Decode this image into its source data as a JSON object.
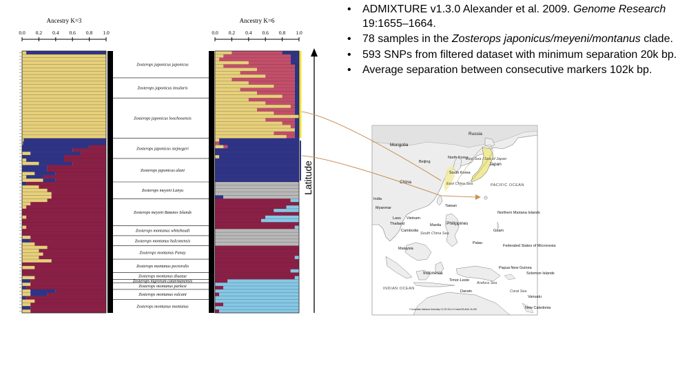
{
  "bullets": {
    "b1_pre": "ADMIXTURE v1.3.0 Alexander et al. 2009. ",
    "b1_journal": "Genome Research",
    "b1_post": " 19:1655–1664.",
    "b2_pre": "78 samples in the ",
    "b2_taxon": "Zosterops japonicus/meyeni/montanus",
    "b2_post": " clade.",
    "b3": "593 SNPs from filtered dataset with minimum separation 20k bp.",
    "b4": "Average separation between consecutive markers 102k bp."
  },
  "latitude_label": "Latitude",
  "colors": {
    "yellow": "#e7d07a",
    "navy": "#2e3388",
    "crimson": "#8c1e45",
    "rose": "#c44e6a",
    "grey": "#b8b8b8",
    "lightblue": "#86c8e6",
    "marker_yellow": "#f2e23a",
    "marker_navy": "#2a3a80",
    "arrow": "#c8925a"
  },
  "populations": [
    {
      "name": "Zosterops japonicus japonicus",
      "n": 8
    },
    {
      "name": "Zosterops japonicus insularis",
      "n": 6
    },
    {
      "name": "Zosterops japonicus loochooensis",
      "n": 12
    },
    {
      "name": "Zosterops japonicus stejnegeri",
      "n": 6
    },
    {
      "name": "Zosterops japonicus alani",
      "n": 7
    },
    {
      "name": "Zosterops meyeni Lanyu",
      "n": 5
    },
    {
      "name": "Zosterops meyeni Batanes Islands",
      "n": 8
    },
    {
      "name": "Zosterops montanus whiteheadi",
      "n": 3
    },
    {
      "name": "Zosterops montanus halconensis",
      "n": 3
    },
    {
      "name": "Zosterops montanus Panay",
      "n": 4
    },
    {
      "name": "Zosterops montanus pectoralis",
      "n": 4
    },
    {
      "name": "Zosterops montanus diuatae",
      "n": 2
    },
    {
      "name": "Zosterops nigrorum catarmanensis",
      "n": 1
    },
    {
      "name": "Zosterops montanus parkesi",
      "n": 2
    },
    {
      "name": "Zosterops montanus vulcani",
      "n": 3
    },
    {
      "name": "Zosterops montanus montanus",
      "n": 4
    }
  ],
  "chart_data": [
    {
      "type": "bar",
      "orientation": "horizontal-stacked",
      "title": "Ancestry K=3",
      "xlim": [
        0,
        1
      ],
      "xticks": [
        "0.0",
        "0.2",
        "0.4",
        "0.6",
        "0.8",
        "1.0"
      ],
      "series": [
        {
          "color": "#e7d07a",
          "values": [
            0.05,
            1,
            1,
            1,
            1,
            1,
            1,
            1,
            1,
            1,
            1,
            1,
            1,
            1,
            1,
            1,
            1,
            1,
            1,
            1,
            1,
            1,
            1,
            1,
            1,
            1,
            0.02,
            0.01,
            0,
            0,
            0.1,
            0,
            0.05,
            0.2,
            0,
            0,
            0.15,
            0.05,
            0.25,
            0,
            0.2,
            0.3,
            0.35,
            0.35,
            0.3,
            0.1,
            0.05,
            0,
            0,
            0.05,
            0,
            0,
            0.05,
            0,
            0,
            0.1,
            0,
            0.15,
            0.3,
            0.2,
            0.25,
            0.2,
            0.35,
            0,
            0.15,
            0,
            0,
            0.15,
            0,
            0.1,
            0,
            0.1,
            0.1,
            0,
            0.15,
            0.1,
            0,
            0.1
          ]
        },
        {
          "color": "#2e3388",
          "values": [
            0.95,
            0,
            0,
            0,
            0,
            0,
            0,
            0,
            0,
            0,
            0,
            0,
            0,
            0,
            0,
            0,
            0,
            0,
            0,
            0,
            0,
            0,
            0,
            0,
            0,
            0,
            0.98,
            0.99,
            0.8,
            0.6,
            0.6,
            0.5,
            0.45,
            0.4,
            0.3,
            0.3,
            0.25,
            0.2,
            0.15,
            0.05,
            0,
            0,
            0,
            0,
            0,
            0,
            0,
            0,
            0,
            0,
            0,
            0,
            0,
            0,
            0,
            0,
            0.1,
            0,
            0,
            0,
            0,
            0,
            0,
            0,
            0,
            0,
            0,
            0,
            0.1,
            0,
            0.05,
            0.3,
            0.2,
            0.05,
            0,
            0,
            0.1,
            0
          ]
        },
        {
          "color": "#8c1e45",
          "values": [
            0,
            0,
            0,
            0,
            0,
            0,
            0,
            0,
            0,
            0,
            0,
            0,
            0,
            0,
            0,
            0,
            0,
            0,
            0,
            0,
            0,
            0,
            0,
            0,
            0,
            0,
            0,
            0,
            0.2,
            0.4,
            0.3,
            0.5,
            0.5,
            0.4,
            0.7,
            0.7,
            0.6,
            0.75,
            0.6,
            0.95,
            0.8,
            0.7,
            0.65,
            0.65,
            0.7,
            0.9,
            0.95,
            1,
            1,
            0.95,
            1,
            1,
            0.95,
            1,
            1,
            0.9,
            0.9,
            0.85,
            0.7,
            0.8,
            0.75,
            0.8,
            0.65,
            1,
            0.85,
            1,
            1,
            0.85,
            0.9,
            0.9,
            0.95,
            0.6,
            0.7,
            0.95,
            0.85,
            0.9,
            0.9,
            0.9
          ]
        }
      ]
    },
    {
      "type": "bar",
      "orientation": "horizontal-stacked",
      "title": "Ancestry K=6",
      "xlim": [
        0,
        1
      ],
      "xticks": [
        "0.0",
        "0.2",
        "0.4",
        "0.6",
        "0.8",
        "1.0"
      ],
      "series": [
        {
          "color": "#e7d07a",
          "values": [
            0.2,
            0.1,
            0.05,
            0.4,
            0.1,
            0.5,
            0.3,
            0.6,
            0.2,
            0.4,
            0.7,
            0.3,
            0.5,
            0.8,
            0.4,
            0.6,
            0.9,
            0.5,
            0.7,
            1,
            0.6,
            0.8,
            0.9,
            0.95,
            0.7,
            0.85,
            0.05,
            0,
            0.1,
            0,
            0,
            0.05,
            0,
            0,
            0,
            0,
            0,
            0,
            0,
            0,
            0,
            0,
            0,
            0,
            0,
            0,
            0,
            0,
            0,
            0,
            0,
            0,
            0,
            0,
            0,
            0,
            0,
            0,
            0,
            0,
            0,
            0,
            0,
            0,
            0,
            0,
            0,
            0,
            0,
            0,
            0,
            0,
            0,
            0,
            0,
            0,
            0,
            0
          ]
        },
        {
          "color": "#c44e6a",
          "values": [
            0.6,
            0.8,
            0.85,
            0.5,
            0.85,
            0.45,
            0.65,
            0.35,
            0.75,
            0.55,
            0.25,
            0.65,
            0.45,
            0.15,
            0.55,
            0.35,
            0.05,
            0.45,
            0.25,
            0,
            0.35,
            0.15,
            0.05,
            0,
            0.25,
            0.1,
            0,
            0.05,
            0.05,
            0,
            0,
            0,
            0,
            0,
            0,
            0,
            0,
            0,
            0,
            0,
            0,
            0,
            0,
            0,
            0,
            0,
            0,
            0,
            0,
            0,
            0,
            0,
            0,
            0,
            0,
            0,
            0,
            0,
            0,
            0,
            0,
            0,
            0,
            0,
            0,
            0,
            0,
            0,
            0,
            0,
            0,
            0,
            0,
            0,
            0,
            0,
            0,
            0
          ]
        },
        {
          "color": "#2e3388",
          "values": [
            0.2,
            0.1,
            0.1,
            0.1,
            0.05,
            0.05,
            0.05,
            0.05,
            0.05,
            0.05,
            0.05,
            0.05,
            0.05,
            0.05,
            0.05,
            0.05,
            0.05,
            0.05,
            0.05,
            0,
            0.05,
            0.05,
            0.05,
            0.05,
            0.05,
            0.05,
            0.95,
            0.95,
            0.85,
            1,
            1,
            0.95,
            1,
            1,
            1,
            1,
            1,
            1,
            1,
            0,
            0,
            0,
            0,
            0.1,
            0,
            0,
            0,
            0,
            0,
            0,
            0,
            0,
            0,
            0,
            0,
            0,
            0,
            0,
            0,
            0,
            0,
            0,
            0,
            0,
            0,
            0,
            0,
            0,
            0,
            0,
            0,
            0,
            0,
            0,
            0,
            0,
            0,
            0
          ]
        },
        {
          "color": "#b8b8b8",
          "values": [
            0,
            0,
            0,
            0,
            0,
            0,
            0,
            0,
            0,
            0,
            0,
            0,
            0,
            0,
            0,
            0,
            0,
            0,
            0,
            0,
            0,
            0,
            0,
            0,
            0,
            0,
            0,
            0,
            0,
            0,
            0,
            0,
            0,
            0,
            0,
            0,
            0,
            0,
            0,
            1,
            1,
            1,
            1,
            0.9,
            0,
            0,
            0,
            0,
            0,
            0,
            0,
            0,
            0,
            1,
            1,
            1,
            1,
            1,
            0,
            0,
            0,
            0,
            0,
            0,
            0,
            0,
            0,
            0,
            0,
            0,
            0,
            0,
            0,
            0,
            0,
            0,
            0,
            0
          ]
        },
        {
          "color": "#8c1e45",
          "values": [
            0,
            0,
            0,
            0,
            0,
            0,
            0,
            0,
            0,
            0,
            0,
            0,
            0,
            0,
            0,
            0,
            0,
            0,
            0,
            0,
            0,
            0,
            0,
            0,
            0,
            0,
            0,
            0,
            0,
            0,
            0,
            0,
            0,
            0,
            0,
            0,
            0,
            0,
            0,
            0,
            0,
            0,
            0,
            0,
            0.9,
            1,
            0.85,
            0.7,
            1,
            0.6,
            0.55,
            1,
            0.95,
            0,
            0,
            0,
            0,
            0,
            1,
            1,
            1,
            0.95,
            1,
            1,
            1,
            0.9,
            1,
            0.95,
            0.15,
            0,
            0.1,
            0,
            0.05,
            0,
            0,
            0.1,
            0,
            0.05
          ]
        },
        {
          "color": "#86c8e6",
          "values": [
            0,
            0,
            0,
            0,
            0,
            0,
            0,
            0,
            0,
            0,
            0,
            0,
            0,
            0,
            0,
            0,
            0,
            0,
            0,
            0,
            0,
            0,
            0,
            0,
            0,
            0,
            0,
            0,
            0,
            0,
            0,
            0,
            0,
            0,
            0,
            0,
            0,
            0,
            0,
            0,
            0,
            0,
            0,
            0,
            0.1,
            0,
            0.15,
            0.3,
            0,
            0.4,
            0.45,
            0,
            0.05,
            0,
            0,
            0,
            0,
            0,
            0,
            0,
            0,
            0.05,
            0,
            0,
            0,
            0.1,
            0,
            0.05,
            0.85,
            1,
            0.9,
            1,
            0.95,
            1,
            1,
            0.9,
            1,
            0.95
          ]
        }
      ]
    }
  ],
  "map": {
    "labels": {
      "russia": "Russia",
      "mongolia": "Mongolia",
      "china": "China",
      "beijing": "Beijing",
      "north_korea": "North Korea",
      "south_korea": "South Korea",
      "japan": "Japan",
      "sea_of_japan": "East Sea / Sea of Japan",
      "east_china_sea": "East China Sea",
      "pacific_ocean": "PACIFIC OCEAN",
      "india": "India",
      "myanmar": "Myanmar",
      "laos": "Laos",
      "thailand": "Thailand",
      "vietnam": "Vietnam",
      "cambodia": "Cambodia",
      "taiwan": "Taiwan",
      "philippines": "Philippines",
      "south_china_sea": "South China Sea",
      "manila": "Manila",
      "northern_mariana": "Northern Mariana Islands",
      "guam": "Guam",
      "palau": "Palau",
      "micronesia": "Federated States of Micronesia",
      "malaysia": "Malaysia",
      "indonesia": "Indonesia",
      "timor_leste": "Timor-Leste",
      "darwin": "Darwin",
      "png": "Papua New Guinea",
      "solomon": "Solomon Islands",
      "vanuatu": "Vanuatu",
      "new_caledonia": "New Caledonia",
      "indian_ocean": "INDIAN OCEAN",
      "arafura": "Arafura Sea",
      "coral_sea": "Coral Sea",
      "credit": "© Australian National University CC BY-SA 4.0 CartoGIS ANU 16-190"
    }
  }
}
